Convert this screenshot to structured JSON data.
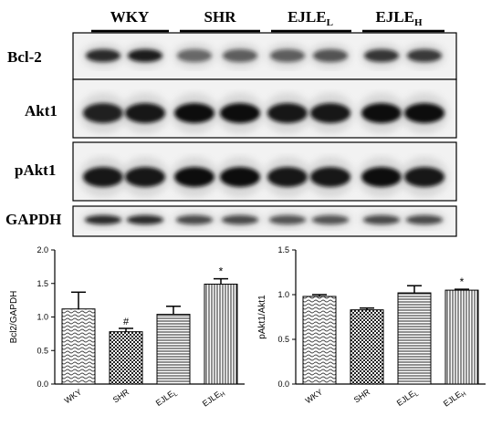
{
  "blot": {
    "group_labels": [
      {
        "base": "WKY",
        "sub": ""
      },
      {
        "base": "SHR",
        "sub": ""
      },
      {
        "base": "EJLE",
        "sub": "L"
      },
      {
        "base": "EJLE",
        "sub": "H"
      }
    ],
    "rows": [
      {
        "label": "Bcl-2"
      },
      {
        "label": "Akt1"
      },
      {
        "label": "pAkt1"
      },
      {
        "label": "GAPDH"
      }
    ]
  },
  "chart_data": [
    {
      "type": "bar",
      "categories": [
        {
          "base": "WKY",
          "sub": ""
        },
        {
          "base": "SHR",
          "sub": ""
        },
        {
          "base": "EJLE",
          "sub": "L"
        },
        {
          "base": "EJLE",
          "sub": "H"
        }
      ],
      "values": [
        1.12,
        0.78,
        1.04,
        1.49
      ],
      "errors": [
        0.25,
        0.05,
        0.12,
        0.08
      ],
      "significance": [
        "",
        "#",
        "",
        "*"
      ],
      "patterns": [
        "wave-hatch",
        "checker",
        "horizontal-lines",
        "vertical-lines"
      ],
      "ylabel": "Bcl2/GAPDH",
      "xlabel": "",
      "title": "",
      "ylim": [
        0,
        2.0
      ],
      "yticks": [
        "0.0",
        "0.5",
        "1.0",
        "1.5",
        "2.0"
      ],
      "grid": false
    },
    {
      "type": "bar",
      "categories": [
        {
          "base": "WKY",
          "sub": ""
        },
        {
          "base": "SHR",
          "sub": ""
        },
        {
          "base": "EJLE",
          "sub": "L"
        },
        {
          "base": "EJLE",
          "sub": "H"
        }
      ],
      "values": [
        0.98,
        0.83,
        1.02,
        1.05
      ],
      "errors": [
        0.02,
        0.02,
        0.08,
        0.01
      ],
      "significance": [
        "",
        "",
        "",
        "*"
      ],
      "patterns": [
        "wave-hatch",
        "checker",
        "horizontal-lines",
        "vertical-lines"
      ],
      "ylabel": "pAkt1/Akt1",
      "xlabel": "",
      "title": "",
      "ylim": [
        0,
        1.5
      ],
      "yticks": [
        "0.0",
        "0.5",
        "1.0",
        "1.5"
      ],
      "grid": false
    }
  ],
  "colors": {
    "ink": "#000000",
    "band": "#111111",
    "blot_bg": "#f2f2f2"
  }
}
